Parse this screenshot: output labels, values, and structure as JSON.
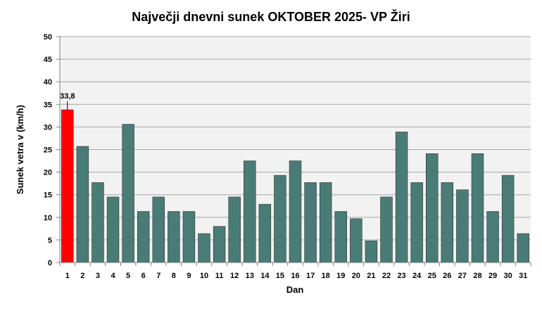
{
  "chart_data": {
    "type": "bar",
    "title": "Največji dnevni sunek OKTOBER  2025- VP Žiri",
    "xlabel": "Dan",
    "ylabel": "Sunek vetra  v (km/h)",
    "ylim": [
      0,
      50
    ],
    "yticks": [
      "0",
      "5",
      "10",
      "15",
      "20",
      "25",
      "30",
      "35",
      "40",
      "45",
      "50"
    ],
    "categories": [
      "1",
      "2",
      "3",
      "4",
      "5",
      "6",
      "7",
      "8",
      "9",
      "10",
      "11",
      "12",
      "13",
      "14",
      "15",
      "16",
      "17",
      "18",
      "19",
      "20",
      "21",
      "22",
      "23",
      "24",
      "25",
      "26",
      "27",
      "28",
      "29",
      "30",
      "31"
    ],
    "values": [
      33.8,
      25.7,
      17.7,
      14.5,
      30.6,
      11.3,
      14.5,
      11.3,
      11.3,
      6.4,
      8.0,
      14.5,
      22.5,
      12.9,
      19.3,
      22.5,
      17.7,
      17.7,
      11.3,
      9.7,
      4.8,
      14.5,
      28.9,
      17.7,
      24.1,
      17.7,
      16.1,
      24.1,
      11.3,
      19.3,
      6.4
    ],
    "max_label": "33,8",
    "highlight_index": 0,
    "colors": {
      "bar": "#4a7c77",
      "highlight": "#ff0000",
      "plot_background": "#f2f2f2",
      "grid": "#a6a6a6"
    },
    "grid": true,
    "legend": "none"
  }
}
